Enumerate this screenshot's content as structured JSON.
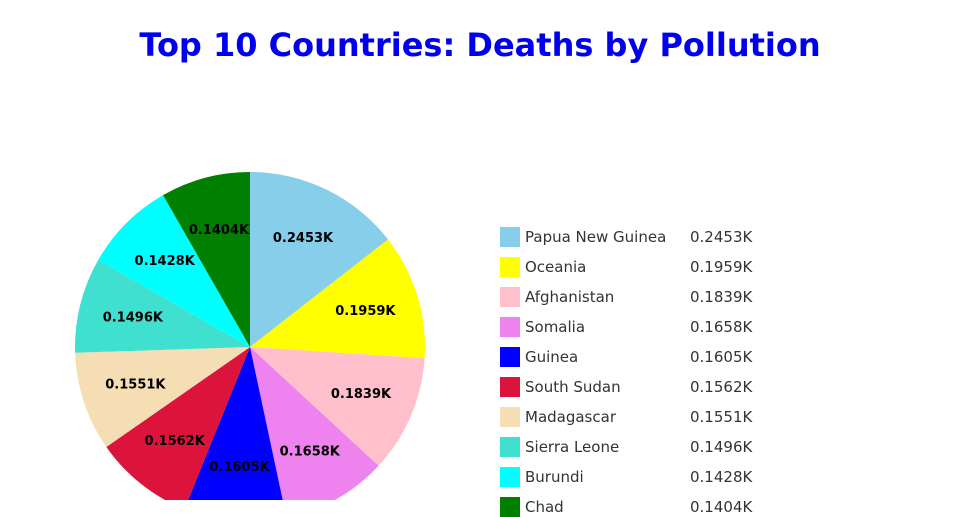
{
  "chart_data": {
    "type": "pie",
    "title": "Top 10 Countries: Deaths by Pollution",
    "categories": [
      "Papua New Guinea",
      "Oceania",
      "Afghanistan",
      "Somalia",
      "Guinea",
      "South Sudan",
      "Madagascar",
      "Sierra Leone",
      "Burundi",
      "Chad"
    ],
    "values": [
      0.2453,
      0.1959,
      0.1839,
      0.1658,
      0.1605,
      0.1562,
      0.1551,
      0.1496,
      0.1428,
      0.1404
    ],
    "labels": [
      "0.2453K",
      "0.1959K",
      "0.1839K",
      "0.1658K",
      "0.1605K",
      "0.1562K",
      "0.1551K",
      "0.1496K",
      "0.1428K",
      "0.1404K"
    ],
    "colors": [
      "#87ceeb",
      "#ffff00",
      "#ffc0cb",
      "#ee82ee",
      "#0000ff",
      "#dc143c",
      "#f5deb3",
      "#40e0d0",
      "#00ffff",
      "#008000"
    ],
    "legend_position": "right"
  }
}
